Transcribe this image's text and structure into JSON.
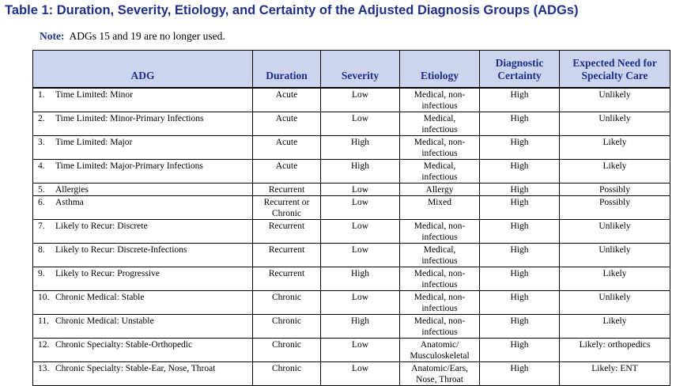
{
  "title": "Table 1:  Duration, Severity, Etiology, and Certainty of the Adjusted Diagnosis Groups (ADGs)",
  "note": {
    "label": "Note:",
    "text": "ADGs 15 and 19 are no longer used."
  },
  "table": {
    "headers": {
      "adg": "ADG",
      "duration": "Duration",
      "severity": "Severity",
      "etiology": "Etiology",
      "certainty_l1": "Diagnostic",
      "certainty_l2": "Certainty",
      "need_l1": "Expected Need for",
      "need_l2": "Specialty Care"
    },
    "rows": [
      {
        "num": "1.",
        "adg": "Time Limited: Minor",
        "duration": "Acute",
        "severity": "Low",
        "etiology_l1": "Medical, non-",
        "etiology_l2": "infectious",
        "certainty": "High",
        "need": "Unlikely"
      },
      {
        "num": "2.",
        "adg": "Time Limited: Minor-Primary Infections",
        "duration": "Acute",
        "severity": "Low",
        "etiology_l1": "Medical,",
        "etiology_l2": "infectious",
        "certainty": "High",
        "need": "Unlikely"
      },
      {
        "num": "3.",
        "adg": "Time Limited: Major",
        "duration": "Acute",
        "severity": "High",
        "etiology_l1": "Medical, non-",
        "etiology_l2": "infectious",
        "certainty": "High",
        "need": "Likely"
      },
      {
        "num": "4.",
        "adg": "Time Limited: Major-Primary Infections",
        "duration": "Acute",
        "severity": "High",
        "etiology_l1": "Medical,",
        "etiology_l2": "infectious",
        "certainty": "High",
        "need": "Likely"
      },
      {
        "num": "5.",
        "adg": "Allergies",
        "duration": "Recurrent",
        "severity": "Low",
        "etiology_l1": "Allergy",
        "etiology_l2": "",
        "certainty": "High",
        "need": "Possibly",
        "short": true
      },
      {
        "num": "6.",
        "adg": "Asthma",
        "duration": "Recurrent or",
        "duration_l2": "Chronic",
        "severity": "Low",
        "etiology_l1": "Mixed",
        "etiology_l2": "",
        "certainty": "High",
        "need": "Possibly"
      },
      {
        "num": "7.",
        "adg": "Likely to Recur: Discrete",
        "duration": "Recurrent",
        "severity": "Low",
        "etiology_l1": "Medical, non-",
        "etiology_l2": "infectious",
        "certainty": "High",
        "need": "Unlikely"
      },
      {
        "num": "8.",
        "adg": "Likely to Recur: Discrete-Infections",
        "duration": "Recurrent",
        "severity": "Low",
        "etiology_l1": "Medical,",
        "etiology_l2": "infectious",
        "certainty": "High",
        "need": "Unlikely"
      },
      {
        "num": "9.",
        "adg": "Likely to Recur: Progressive",
        "duration": "Recurrent",
        "severity": "High",
        "etiology_l1": "Medical, non-",
        "etiology_l2": "infectious",
        "certainty": "High",
        "need": "Likely"
      },
      {
        "num": "10.",
        "adg": "Chronic Medical: Stable",
        "duration": "Chronic",
        "severity": "Low",
        "etiology_l1": "Medical, non-",
        "etiology_l2": "infectious",
        "certainty": "High",
        "need": "Unlikely"
      },
      {
        "num": "11.",
        "adg": "Chronic Medical: Unstable",
        "duration": "Chronic",
        "severity": "High",
        "etiology_l1": "Medical, non-",
        "etiology_l2": "infectious",
        "certainty": "High",
        "need": "Likely"
      },
      {
        "num": "12.",
        "adg": "Chronic Specialty: Stable-Orthopedic",
        "duration": "Chronic",
        "severity": "Low",
        "etiology_l1": "Anatomic/",
        "etiology_l2": "Musculoskeletal",
        "certainty": "High",
        "need": "Likely:  orthopedics"
      },
      {
        "num": "13.",
        "adg": "Chronic Specialty: Stable-Ear, Nose, Throat",
        "duration": "Chronic",
        "severity": "Low",
        "etiology_l1": "Anatomic/Ears,",
        "etiology_l2": "Nose, Throat",
        "certainty": "High",
        "need": "Likely:  ENT"
      }
    ]
  }
}
